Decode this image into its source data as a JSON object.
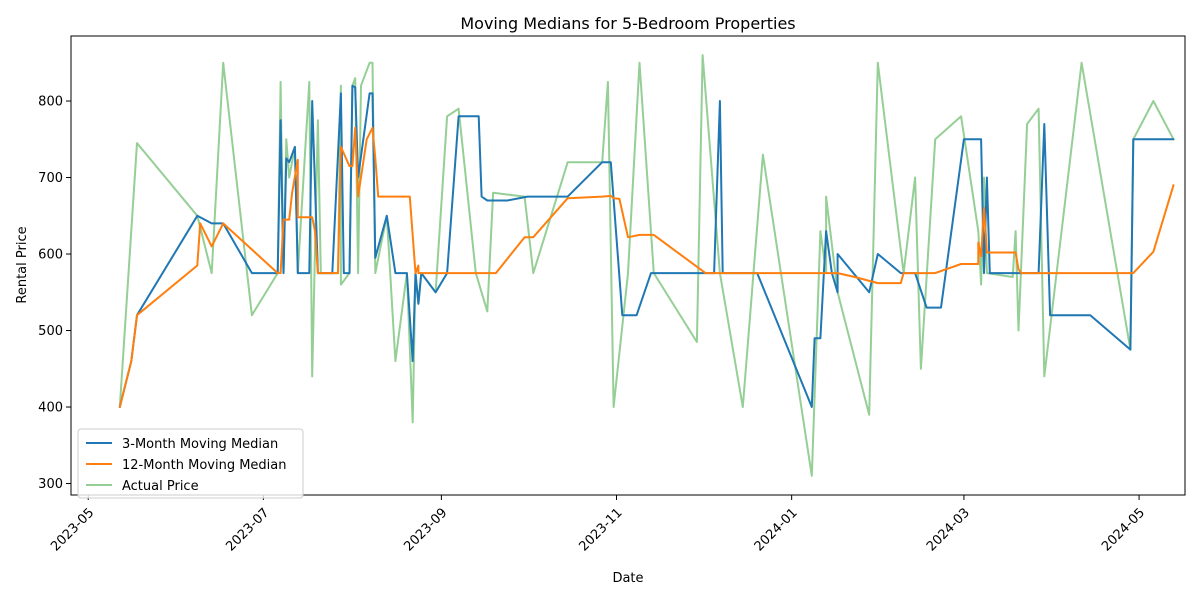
{
  "chart_data": {
    "type": "line",
    "title": "Moving Medians for 5-Bedroom Properties",
    "xlabel": "Date",
    "ylabel": "Rental Price",
    "xlim": [
      "2023-04-25",
      "2024-05-17"
    ],
    "ylim": [
      285,
      885
    ],
    "x_ticks": [
      "2023-05",
      "2023-07",
      "2023-09",
      "2023-11",
      "2024-01",
      "2024-03",
      "2024-05"
    ],
    "y_ticks": [
      300,
      400,
      500,
      600,
      700,
      800
    ],
    "grid": false,
    "legend_position": "lower-left",
    "series": [
      {
        "name": "3-Month Moving Median",
        "color": "#1f77b4",
        "points": [
          [
            "2023-05-12",
            400
          ],
          [
            "2023-05-16",
            460
          ],
          [
            "2023-05-18",
            520
          ],
          [
            "2023-06-08",
            650
          ],
          [
            "2023-06-13",
            640
          ],
          [
            "2023-06-17",
            640
          ],
          [
            "2023-06-27",
            575
          ],
          [
            "2023-07-06",
            575
          ],
          [
            "2023-07-07",
            775
          ],
          [
            "2023-07-08",
            575
          ],
          [
            "2023-07-09",
            725
          ],
          [
            "2023-07-10",
            720
          ],
          [
            "2023-07-12",
            740
          ],
          [
            "2023-07-13",
            575
          ],
          [
            "2023-07-17",
            575
          ],
          [
            "2023-07-18",
            800
          ],
          [
            "2023-07-20",
            575
          ],
          [
            "2023-07-25",
            575
          ],
          [
            "2023-07-28",
            810
          ],
          [
            "2023-07-29",
            575
          ],
          [
            "2023-07-31",
            575
          ],
          [
            "2023-08-01",
            820
          ],
          [
            "2023-08-02",
            818
          ],
          [
            "2023-08-03",
            700
          ],
          [
            "2023-08-07",
            810
          ],
          [
            "2023-08-08",
            810
          ],
          [
            "2023-08-09",
            595
          ],
          [
            "2023-08-13",
            650
          ],
          [
            "2023-08-16",
            575
          ],
          [
            "2023-08-20",
            575
          ],
          [
            "2023-08-22",
            460
          ],
          [
            "2023-08-23",
            575
          ],
          [
            "2023-08-24",
            535
          ],
          [
            "2023-08-25",
            575
          ],
          [
            "2023-08-30",
            550
          ],
          [
            "2023-09-03",
            575
          ],
          [
            "2023-09-07",
            780
          ],
          [
            "2023-09-14",
            780
          ],
          [
            "2023-09-15",
            675
          ],
          [
            "2023-09-17",
            670
          ],
          [
            "2023-09-24",
            670
          ],
          [
            "2023-10-01",
            675
          ],
          [
            "2023-10-15",
            675
          ],
          [
            "2023-10-27",
            720
          ],
          [
            "2023-10-30",
            720
          ],
          [
            "2023-11-03",
            520
          ],
          [
            "2023-11-08",
            520
          ],
          [
            "2023-11-13",
            575
          ],
          [
            "2023-12-05",
            575
          ],
          [
            "2023-12-07",
            800
          ],
          [
            "2023-12-08",
            575
          ],
          [
            "2023-12-20",
            575
          ],
          [
            "2024-01-08",
            400
          ],
          [
            "2024-01-09",
            490
          ],
          [
            "2024-01-11",
            490
          ],
          [
            "2024-01-13",
            630
          ],
          [
            "2024-01-15",
            575
          ],
          [
            "2024-01-17",
            550
          ],
          [
            "2024-01-17",
            600
          ],
          [
            "2024-01-28",
            550
          ],
          [
            "2024-01-31",
            600
          ],
          [
            "2024-02-08",
            575
          ],
          [
            "2024-02-13",
            575
          ],
          [
            "2024-02-17",
            530
          ],
          [
            "2024-02-22",
            530
          ],
          [
            "2024-03-01",
            750
          ],
          [
            "2024-03-07",
            750
          ],
          [
            "2024-03-08",
            575
          ],
          [
            "2024-03-09",
            700
          ],
          [
            "2024-03-10",
            575
          ],
          [
            "2024-03-18",
            575
          ],
          [
            "2024-03-27",
            575
          ],
          [
            "2024-03-29",
            770
          ],
          [
            "2024-03-31",
            520
          ],
          [
            "2024-04-14",
            520
          ],
          [
            "2024-04-28",
            475
          ],
          [
            "2024-04-29",
            750
          ],
          [
            "2024-05-13",
            750
          ]
        ]
      },
      {
        "name": "12-Month Moving Median",
        "color": "#ff7f0e",
        "points": [
          [
            "2023-05-12",
            400
          ],
          [
            "2023-05-16",
            460
          ],
          [
            "2023-05-18",
            520
          ],
          [
            "2023-06-08",
            585
          ],
          [
            "2023-06-09",
            640
          ],
          [
            "2023-06-13",
            610
          ],
          [
            "2023-06-17",
            640
          ],
          [
            "2023-07-06",
            575
          ],
          [
            "2023-07-07",
            575
          ],
          [
            "2023-07-08",
            645
          ],
          [
            "2023-07-10",
            645
          ],
          [
            "2023-07-11",
            680
          ],
          [
            "2023-07-13",
            723
          ],
          [
            "2023-07-13",
            648
          ],
          [
            "2023-07-18",
            648
          ],
          [
            "2023-07-19",
            630
          ],
          [
            "2023-07-20",
            575
          ],
          [
            "2023-07-27",
            575
          ],
          [
            "2023-07-28",
            740
          ],
          [
            "2023-07-31",
            715
          ],
          [
            "2023-08-01",
            715
          ],
          [
            "2023-08-02",
            765
          ],
          [
            "2023-08-03",
            675
          ],
          [
            "2023-08-06",
            750
          ],
          [
            "2023-08-08",
            765
          ],
          [
            "2023-08-09",
            725
          ],
          [
            "2023-08-10",
            675
          ],
          [
            "2023-08-21",
            675
          ],
          [
            "2023-08-23",
            575
          ],
          [
            "2023-08-24",
            585
          ],
          [
            "2023-08-24",
            575
          ],
          [
            "2023-09-20",
            575
          ],
          [
            "2023-09-30",
            622
          ],
          [
            "2023-10-03",
            622
          ],
          [
            "2023-10-15",
            673
          ],
          [
            "2023-10-27",
            675
          ],
          [
            "2023-10-30",
            676
          ],
          [
            "2023-10-31",
            673
          ],
          [
            "2023-11-02",
            672
          ],
          [
            "2023-11-05",
            622
          ],
          [
            "2023-11-09",
            625
          ],
          [
            "2023-11-14",
            625
          ],
          [
            "2023-12-02",
            575
          ],
          [
            "2023-12-20",
            575
          ],
          [
            "2024-01-17",
            575
          ],
          [
            "2024-01-23",
            570
          ],
          [
            "2024-01-31",
            562
          ],
          [
            "2024-02-08",
            562
          ],
          [
            "2024-02-09",
            575
          ],
          [
            "2024-02-20",
            575
          ],
          [
            "2024-02-29",
            587
          ],
          [
            "2024-03-06",
            587
          ],
          [
            "2024-03-06",
            615
          ],
          [
            "2024-03-07",
            597
          ],
          [
            "2024-03-08",
            660
          ],
          [
            "2024-03-09",
            602
          ],
          [
            "2024-03-19",
            602
          ],
          [
            "2024-03-20",
            580
          ],
          [
            "2024-03-21",
            575
          ],
          [
            "2024-04-23",
            575
          ],
          [
            "2024-04-29",
            575
          ],
          [
            "2024-05-06",
            603
          ],
          [
            "2024-05-13",
            690
          ]
        ]
      },
      {
        "name": "Actual Price",
        "color": "#2ca02c",
        "opacity": 0.5,
        "points": [
          [
            "2023-05-12",
            400
          ],
          [
            "2023-05-18",
            745
          ],
          [
            "2023-06-08",
            650
          ],
          [
            "2023-06-13",
            575
          ],
          [
            "2023-06-17",
            850
          ],
          [
            "2023-06-27",
            520
          ],
          [
            "2023-07-06",
            575
          ],
          [
            "2023-07-07",
            825
          ],
          [
            "2023-07-08",
            575
          ],
          [
            "2023-07-09",
            750
          ],
          [
            "2023-07-10",
            700
          ],
          [
            "2023-07-12",
            740
          ],
          [
            "2023-07-13",
            575
          ],
          [
            "2023-07-17",
            825
          ],
          [
            "2023-07-18",
            440
          ],
          [
            "2023-07-20",
            775
          ],
          [
            "2023-07-21",
            575
          ],
          [
            "2023-07-27",
            575
          ],
          [
            "2023-07-28",
            820
          ],
          [
            "2023-07-28",
            560
          ],
          [
            "2023-07-31",
            575
          ],
          [
            "2023-08-01",
            820
          ],
          [
            "2023-08-02",
            830
          ],
          [
            "2023-08-03",
            575
          ],
          [
            "2023-08-04",
            820
          ],
          [
            "2023-08-07",
            850
          ],
          [
            "2023-08-08",
            850
          ],
          [
            "2023-08-09",
            575
          ],
          [
            "2023-08-13",
            650
          ],
          [
            "2023-08-16",
            460
          ],
          [
            "2023-08-20",
            575
          ],
          [
            "2023-08-22",
            380
          ],
          [
            "2023-08-23",
            575
          ],
          [
            "2023-08-24",
            535
          ],
          [
            "2023-08-25",
            575
          ],
          [
            "2023-08-30",
            550
          ],
          [
            "2023-09-03",
            780
          ],
          [
            "2023-09-07",
            790
          ],
          [
            "2023-09-13",
            575
          ],
          [
            "2023-09-17",
            525
          ],
          [
            "2023-09-19",
            680
          ],
          [
            "2023-09-30",
            675
          ],
          [
            "2023-10-03",
            575
          ],
          [
            "2023-10-15",
            720
          ],
          [
            "2023-10-27",
            720
          ],
          [
            "2023-10-29",
            825
          ],
          [
            "2023-10-31",
            400
          ],
          [
            "2023-11-05",
            575
          ],
          [
            "2023-11-09",
            850
          ],
          [
            "2023-11-14",
            575
          ],
          [
            "2023-11-29",
            485
          ],
          [
            "2023-12-01",
            860
          ],
          [
            "2023-12-07",
            575
          ],
          [
            "2023-12-15",
            400
          ],
          [
            "2023-12-22",
            730
          ],
          [
            "2024-01-08",
            310
          ],
          [
            "2024-01-11",
            630
          ],
          [
            "2024-01-13",
            575
          ],
          [
            "2024-01-13",
            675
          ],
          [
            "2024-01-17",
            550
          ],
          [
            "2024-01-28",
            390
          ],
          [
            "2024-01-31",
            850
          ],
          [
            "2024-02-09",
            575
          ],
          [
            "2024-02-13",
            700
          ],
          [
            "2024-02-15",
            450
          ],
          [
            "2024-02-20",
            750
          ],
          [
            "2024-02-29",
            780
          ],
          [
            "2024-03-06",
            630
          ],
          [
            "2024-03-07",
            560
          ],
          [
            "2024-03-08",
            700
          ],
          [
            "2024-03-09",
            575
          ],
          [
            "2024-03-18",
            570
          ],
          [
            "2024-03-19",
            630
          ],
          [
            "2024-03-20",
            500
          ],
          [
            "2024-03-23",
            770
          ],
          [
            "2024-03-27",
            790
          ],
          [
            "2024-03-29",
            440
          ],
          [
            "2024-04-11",
            850
          ],
          [
            "2024-04-28",
            475
          ],
          [
            "2024-04-29",
            750
          ],
          [
            "2024-05-06",
            800
          ],
          [
            "2024-05-13",
            750
          ]
        ]
      }
    ]
  }
}
